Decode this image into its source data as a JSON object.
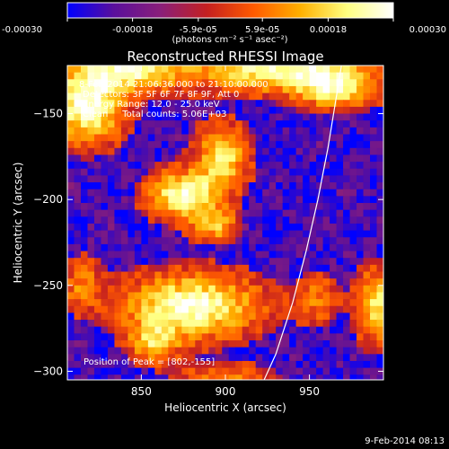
{
  "colorbar": {
    "ticks": [
      "-0.00030",
      "-0.00018",
      "-5.9e-05",
      "5.9e-05",
      "0.00018",
      "0.00030"
    ],
    "tick_values": [
      -0.0003,
      -0.00018,
      -5.9e-05,
      5.9e-05,
      0.00018,
      0.0003
    ],
    "range": [
      -0.0003,
      0.0003
    ],
    "units": "(photons cm⁻² s⁻¹ asec⁻²)",
    "colors": [
      "#0000ff",
      "#5a0f9c",
      "#8a1f7a",
      "#c42020",
      "#ff5a00",
      "#ffb000",
      "#ffff80",
      "#ffffff"
    ]
  },
  "chart_data": {
    "type": "heatmap",
    "title": "Reconstructed RHESSI Image",
    "xlabel": "Heliocentric X (arcsec)",
    "ylabel": "Heliocentric Y (arcsec)",
    "xlim": [
      806,
      994
    ],
    "ylim": [
      -305,
      -122
    ],
    "x_ticks": [
      850,
      900,
      950
    ],
    "y_ticks": [
      -150,
      -200,
      -250,
      -300
    ],
    "x_tick_labels": [
      "850",
      "900",
      "950"
    ],
    "y_tick_labels": [
      "−150",
      "−200",
      "−250",
      "−300"
    ],
    "info": [
      "8-Feb-2014 21:06:36.000 to 21:10:00.000",
      "Detectors: 3F 5F 6F 7F 8F 9F, Att 0",
      "Energy Range: 12.0 - 25.0 keV",
      "Clean     Total counts: 5.06E+03"
    ],
    "peak_label": "Position of Peak = [802,-155]",
    "peak": [
      802,
      -155
    ],
    "limb_curve": [
      [
        923,
        -305
      ],
      [
        930,
        -290
      ],
      [
        940,
        -260
      ],
      [
        948,
        -230
      ],
      [
        955,
        -200
      ],
      [
        961,
        -170
      ],
      [
        966,
        -140
      ],
      [
        969,
        -122
      ]
    ],
    "sources": [
      {
        "x": 818,
        "y": -145,
        "sx": 14,
        "sy": 14,
        "amp": 1.0
      },
      {
        "x": 845,
        "y": -125,
        "sx": 22,
        "sy": 8,
        "amp": 0.8
      },
      {
        "x": 930,
        "y": -125,
        "sx": 32,
        "sy": 8,
        "amp": 0.85
      },
      {
        "x": 965,
        "y": -135,
        "sx": 15,
        "sy": 8,
        "amp": 0.75
      },
      {
        "x": 876,
        "y": -197,
        "sx": 14,
        "sy": 9,
        "amp": 0.95
      },
      {
        "x": 898,
        "y": -175,
        "sx": 10,
        "sy": 12,
        "amp": 0.75
      },
      {
        "x": 893,
        "y": -215,
        "sx": 9,
        "sy": 6,
        "amp": 0.6
      },
      {
        "x": 880,
        "y": -262,
        "sx": 26,
        "sy": 12,
        "amp": 0.95
      },
      {
        "x": 858,
        "y": -283,
        "sx": 10,
        "sy": 8,
        "amp": 0.6
      },
      {
        "x": 955,
        "y": -258,
        "sx": 8,
        "sy": 10,
        "amp": 0.35
      },
      {
        "x": 990,
        "y": -262,
        "sx": 8,
        "sy": 14,
        "amp": 0.7
      },
      {
        "x": 815,
        "y": -250,
        "sx": 8,
        "sy": 10,
        "amp": 0.4
      },
      {
        "x": 900,
        "y": -305,
        "sx": 18,
        "sy": 6,
        "amp": 0.4
      }
    ],
    "grid": false
  },
  "footer": {
    "date": "9-Feb-2014 08:13"
  }
}
